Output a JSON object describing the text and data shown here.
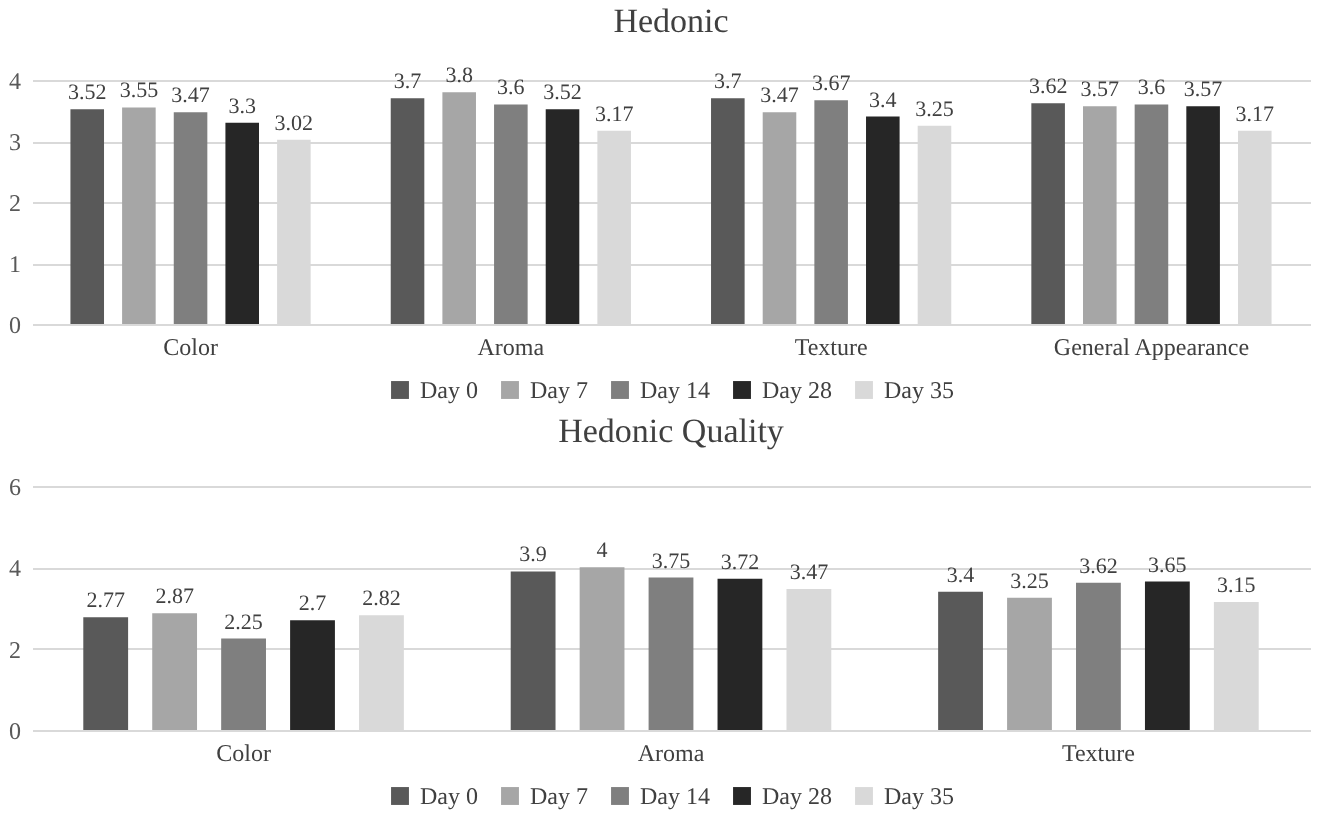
{
  "chart_data": [
    {
      "type": "bar",
      "title": "Hedonic",
      "categories": [
        "Color",
        "Aroma",
        "Texture",
        "General Appearance"
      ],
      "series": [
        {
          "name": "Day 0",
          "color": "#595959",
          "values": [
            3.52,
            3.7,
            3.7,
            3.62
          ]
        },
        {
          "name": "Day 7",
          "color": "#a6a6a6",
          "values": [
            3.55,
            3.8,
            3.47,
            3.57
          ]
        },
        {
          "name": "Day 14",
          "color": "#7f7f7f",
          "values": [
            3.47,
            3.6,
            3.67,
            3.6
          ]
        },
        {
          "name": "Day 28",
          "color": "#262626",
          "values": [
            3.3,
            3.52,
            3.4,
            3.57
          ]
        },
        {
          "name": "Day 35",
          "color": "#d9d9d9",
          "values": [
            3.02,
            3.17,
            3.25,
            3.17
          ]
        }
      ],
      "ylim": [
        0,
        4
      ],
      "yticks": [
        0,
        1,
        2,
        3,
        4
      ],
      "grid": "y",
      "legend": "bottom",
      "data_labels": true
    },
    {
      "type": "bar",
      "title": "Hedonic  Quality",
      "categories": [
        "Color",
        "Aroma",
        "Texture"
      ],
      "series": [
        {
          "name": "Day 0",
          "color": "#595959",
          "values": [
            2.77,
            3.9,
            3.4
          ]
        },
        {
          "name": "Day 7",
          "color": "#a6a6a6",
          "values": [
            2.87,
            4,
            3.25
          ]
        },
        {
          "name": "Day 14",
          "color": "#7f7f7f",
          "values": [
            2.25,
            3.75,
            3.62
          ]
        },
        {
          "name": "Day 28",
          "color": "#262626",
          "values": [
            2.7,
            3.72,
            3.65
          ]
        },
        {
          "name": "Day 35",
          "color": "#d9d9d9",
          "values": [
            2.82,
            3.47,
            3.15
          ]
        }
      ],
      "ylim": [
        0,
        6
      ],
      "yticks": [
        0,
        2,
        4,
        6
      ],
      "grid": "y",
      "legend": "bottom",
      "data_labels": true
    }
  ]
}
